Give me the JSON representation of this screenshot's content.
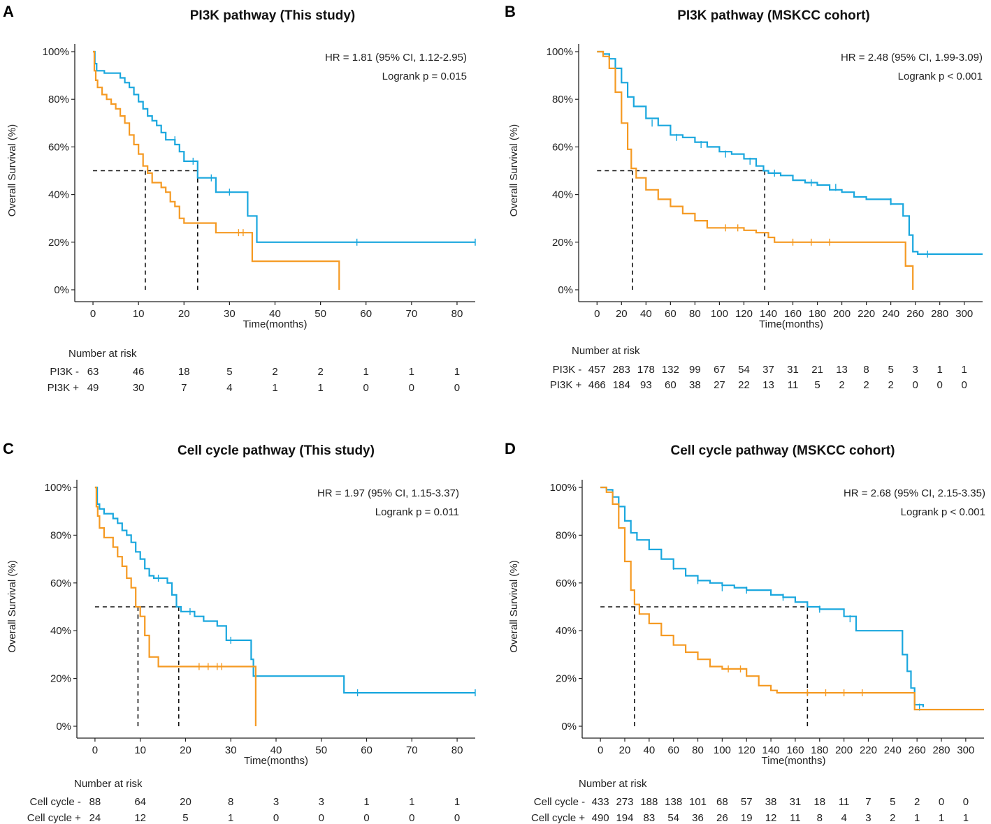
{
  "colors": {
    "minus": "#1aa7de",
    "plus": "#f59a23",
    "axis": "#222222",
    "median": "#111111"
  },
  "chart_data": [
    {
      "panel": "A",
      "type": "line",
      "title": "PI3K pathway (This study)",
      "xlabel": "Time(months)",
      "ylabel": "Overall Survival (%)",
      "xlim": [
        -4,
        84
      ],
      "ylim": [
        0,
        100
      ],
      "xticks": [
        0,
        10,
        20,
        30,
        40,
        50,
        60,
        70,
        80
      ],
      "yticks": [
        0,
        20,
        40,
        60,
        80,
        100
      ],
      "xtick_labels": [
        "0",
        "10",
        "20",
        "30",
        "40",
        "50",
        "60",
        "70",
        "80"
      ],
      "ytick_labels": [
        "0%",
        "20%",
        "40%",
        "60%",
        "80%",
        "100%"
      ],
      "hr_text": "HR = 1.81 (95% CI, 1.12-2.95)",
      "p_text": "Logrank p = 0.015",
      "medians": [
        11.5,
        23
      ],
      "series": [
        {
          "name": "PI3K -",
          "color_key": "minus",
          "x": [
            0,
            0.4,
            0.8,
            1.5,
            2.5,
            3.5,
            5,
            6,
            7,
            8,
            9,
            10,
            11,
            12,
            13,
            14,
            15,
            16,
            17,
            18,
            19,
            20,
            21,
            22,
            23,
            25,
            27,
            30,
            34,
            35,
            36,
            84
          ],
          "y": [
            100,
            95,
            92,
            92,
            91,
            91,
            91,
            89,
            87,
            85,
            82,
            79,
            76,
            73,
            71,
            69,
            66,
            63,
            63,
            61,
            58,
            54,
            54,
            54,
            47,
            47,
            41,
            41,
            31,
            31,
            20,
            20
          ],
          "censors": [
            [
              18,
              63
            ],
            [
              22,
              54
            ],
            [
              26,
              47
            ],
            [
              30,
              41
            ],
            [
              58,
              20
            ],
            [
              84,
              20
            ]
          ]
        },
        {
          "name": "PI3K +",
          "color_key": "plus",
          "x": [
            0,
            0.3,
            0.6,
            1,
            2,
            3,
            4,
            5,
            6,
            7,
            8,
            9,
            10,
            11,
            12,
            13,
            15,
            16,
            17,
            18,
            19,
            20,
            22,
            24,
            27,
            30,
            34,
            35,
            54,
            54.1
          ],
          "y": [
            100,
            92,
            88,
            85,
            82,
            80,
            78,
            76,
            73,
            70,
            65,
            61,
            57,
            52,
            49,
            45,
            43,
            41,
            37,
            35,
            30,
            28,
            28,
            28,
            24,
            24,
            24,
            12,
            12,
            0
          ],
          "censors": [
            [
              32,
              24
            ],
            [
              33,
              24
            ]
          ]
        }
      ],
      "risk": {
        "title": "Number at risk",
        "labels": [
          "PI3K -",
          "PI3K +"
        ],
        "times": [
          0,
          10,
          20,
          30,
          40,
          50,
          60,
          70,
          80
        ],
        "rows": [
          [
            "63",
            "46",
            "18",
            "5",
            "2",
            "2",
            "1",
            "1",
            "1"
          ],
          [
            "49",
            "30",
            "7",
            "4",
            "1",
            "1",
            "0",
            "0",
            "0"
          ]
        ]
      }
    },
    {
      "panel": "B",
      "type": "line",
      "title": "PI3K pathway (MSKCC cohort)",
      "xlabel": "Time(months)",
      "ylabel": "Overall Survival (%)",
      "xlim": [
        -15,
        315
      ],
      "ylim": [
        0,
        100
      ],
      "xticks": [
        0,
        20,
        40,
        60,
        80,
        100,
        120,
        140,
        160,
        180,
        200,
        220,
        240,
        260,
        280,
        300
      ],
      "yticks": [
        0,
        20,
        40,
        60,
        80,
        100
      ],
      "xtick_labels": [
        "0",
        "20",
        "40",
        "60",
        "80",
        "100",
        "120",
        "140",
        "160",
        "180",
        "200",
        "220",
        "240",
        "260",
        "280",
        "300"
      ],
      "ytick_labels": [
        "0%",
        "20%",
        "40%",
        "60%",
        "80%",
        "100%"
      ],
      "hr_text": "HR = 2.48 (95% CI, 1.99-3.09)",
      "p_text": "Logrank p < 0.001",
      "medians": [
        29,
        137
      ],
      "series": [
        {
          "name": "PI3K -",
          "color_key": "minus",
          "x": [
            0,
            5,
            10,
            15,
            20,
            25,
            30,
            40,
            50,
            60,
            70,
            80,
            90,
            100,
            110,
            120,
            130,
            136,
            140,
            150,
            160,
            170,
            180,
            190,
            200,
            210,
            220,
            230,
            240,
            250,
            255,
            258,
            262,
            315
          ],
          "y": [
            100,
            99,
            97,
            93,
            87,
            81,
            77,
            72,
            69,
            65,
            64,
            62,
            60,
            58,
            57,
            55,
            52,
            50,
            49,
            48,
            46,
            45,
            44,
            42,
            41,
            39,
            38,
            38,
            36,
            31,
            23,
            16,
            15,
            15
          ],
          "censors": [
            [
              45,
              70
            ],
            [
              65,
              64
            ],
            [
              85,
              61
            ],
            [
              105,
              57
            ],
            [
              125,
              54
            ],
            [
              145,
              49
            ],
            [
              175,
              45
            ],
            [
              195,
              43
            ],
            [
              240,
              37
            ],
            [
              270,
              15
            ]
          ]
        },
        {
          "name": "PI3K +",
          "color_key": "plus",
          "x": [
            0,
            5,
            10,
            15,
            20,
            25,
            28,
            32,
            40,
            50,
            60,
            70,
            80,
            90,
            100,
            110,
            120,
            130,
            140,
            145,
            150,
            200,
            250,
            252,
            255,
            258
          ],
          "y": [
            100,
            98,
            93,
            83,
            70,
            59,
            51,
            47,
            42,
            38,
            35,
            32,
            29,
            26,
            26,
            26,
            25,
            24,
            22,
            20,
            20,
            20,
            20,
            10,
            10,
            0
          ],
          "censors": [
            [
              105,
              26
            ],
            [
              115,
              26
            ],
            [
              160,
              20
            ],
            [
              175,
              20
            ],
            [
              190,
              20
            ]
          ]
        }
      ],
      "risk": {
        "title": "Number at risk",
        "labels": [
          "PI3K -",
          "PI3K +"
        ],
        "times": [
          0,
          20,
          40,
          60,
          80,
          100,
          120,
          140,
          160,
          180,
          200,
          220,
          240,
          260,
          280,
          300
        ],
        "rows": [
          [
            "457",
            "283",
            "178",
            "132",
            "99",
            "67",
            "54",
            "37",
            "31",
            "21",
            "13",
            "8",
            "5",
            "3",
            "1",
            "1"
          ],
          [
            "466",
            "184",
            "93",
            "60",
            "38",
            "27",
            "22",
            "13",
            "11",
            "5",
            "2",
            "2",
            "2",
            "0",
            "0",
            "0"
          ]
        ]
      }
    },
    {
      "panel": "C",
      "type": "line",
      "title": "Cell cycle pathway (This study)",
      "xlabel": "Time(months)",
      "ylabel": "Overall Survival (%)",
      "xlim": [
        -4,
        84
      ],
      "ylim": [
        0,
        100
      ],
      "xticks": [
        0,
        10,
        20,
        30,
        40,
        50,
        60,
        70,
        80
      ],
      "yticks": [
        0,
        20,
        40,
        60,
        80,
        100
      ],
      "xtick_labels": [
        "0",
        "10",
        "20",
        "30",
        "40",
        "50",
        "60",
        "70",
        "80"
      ],
      "ytick_labels": [
        "0%",
        "20%",
        "40%",
        "60%",
        "80%",
        "100%"
      ],
      "hr_text": "HR = 1.97 (95% CI, 1.15-3.37)",
      "p_text": "Logrank p = 0.011",
      "medians": [
        9.5,
        18.5
      ],
      "series": [
        {
          "name": "Cell cycle -",
          "color_key": "minus",
          "x": [
            0,
            0.5,
            1,
            2,
            4,
            5,
            6,
            7,
            8,
            9,
            10,
            11,
            12,
            13,
            15,
            16,
            17,
            18,
            19,
            20,
            22,
            24,
            27,
            29,
            34,
            34.5,
            35,
            54,
            55,
            84
          ],
          "y": [
            100,
            93,
            91,
            89,
            87,
            85,
            82,
            80,
            77,
            73,
            70,
            66,
            63,
            62,
            62,
            60,
            55,
            50,
            48,
            48,
            46,
            44,
            42,
            36,
            36,
            28,
            21,
            21,
            14,
            14
          ],
          "censors": [
            [
              14,
              62
            ],
            [
              21,
              48
            ],
            [
              30,
              36
            ],
            [
              58,
              14
            ],
            [
              84,
              14
            ]
          ]
        },
        {
          "name": "Cell cycle +",
          "color_key": "plus",
          "x": [
            0,
            0.3,
            0.6,
            1,
            2,
            4,
            5,
            6,
            7,
            8,
            9,
            10,
            11,
            12,
            14,
            35,
            35.5
          ],
          "y": [
            100,
            92,
            88,
            83,
            79,
            75,
            71,
            67,
            62,
            58,
            50,
            46,
            38,
            29,
            25,
            25,
            0
          ],
          "censors": [
            [
              23,
              25
            ],
            [
              25,
              25
            ],
            [
              27,
              25
            ],
            [
              28,
              25
            ]
          ]
        }
      ],
      "risk": {
        "title": "Number at risk",
        "labels": [
          "Cell cycle -",
          "Cell cycle +"
        ],
        "times": [
          0,
          10,
          20,
          30,
          40,
          50,
          60,
          70,
          80
        ],
        "rows": [
          [
            "88",
            "64",
            "20",
            "8",
            "3",
            "3",
            "1",
            "1",
            "1"
          ],
          [
            "24",
            "12",
            "5",
            "1",
            "0",
            "0",
            "0",
            "0",
            "0"
          ]
        ]
      }
    },
    {
      "panel": "D",
      "type": "line",
      "title": "Cell cycle pathway (MSKCC cohort)",
      "xlabel": "Time(months)",
      "ylabel": "Overall Survival (%)",
      "xlim": [
        -15,
        315
      ],
      "ylim": [
        0,
        100
      ],
      "xticks": [
        0,
        20,
        40,
        60,
        80,
        100,
        120,
        140,
        160,
        180,
        200,
        220,
        240,
        260,
        280,
        300
      ],
      "yticks": [
        0,
        20,
        40,
        60,
        80,
        100
      ],
      "xtick_labels": [
        "0",
        "20",
        "40",
        "60",
        "80",
        "100",
        "120",
        "140",
        "160",
        "180",
        "200",
        "220",
        "240",
        "260",
        "280",
        "300"
      ],
      "ytick_labels": [
        "0%",
        "20%",
        "40%",
        "60%",
        "80%",
        "100%"
      ],
      "hr_text": "HR = 2.68 (95% CI, 2.15-3.35)",
      "p_text": "Logrank p < 0.001",
      "medians": [
        28,
        170
      ],
      "series": [
        {
          "name": "Cell cycle -",
          "color_key": "minus",
          "x": [
            0,
            5,
            10,
            15,
            20,
            25,
            30,
            40,
            50,
            60,
            70,
            80,
            90,
            100,
            110,
            120,
            140,
            150,
            160,
            170,
            180,
            200,
            210,
            240,
            248,
            252,
            255,
            258,
            265
          ],
          "y": [
            100,
            99,
            96,
            92,
            86,
            81,
            78,
            74,
            70,
            66,
            63,
            61,
            60,
            59,
            58,
            57,
            55,
            54,
            52,
            50,
            49,
            46,
            40,
            40,
            30,
            23,
            16,
            9,
            8
          ],
          "censors": [
            [
              40,
              76
            ],
            [
              60,
              67
            ],
            [
              80,
              61
            ],
            [
              100,
              58
            ],
            [
              120,
              57
            ],
            [
              150,
              54
            ],
            [
              180,
              49
            ],
            [
              205,
              45
            ],
            [
              262,
              8
            ]
          ]
        },
        {
          "name": "Cell cycle +",
          "color_key": "plus",
          "x": [
            0,
            5,
            10,
            15,
            20,
            25,
            28,
            32,
            40,
            50,
            60,
            70,
            80,
            90,
            100,
            110,
            120,
            130,
            140,
            145,
            150,
            200,
            255,
            258,
            315
          ],
          "y": [
            100,
            98,
            93,
            83,
            69,
            57,
            51,
            47,
            43,
            38,
            34,
            31,
            28,
            25,
            24,
            24,
            21,
            17,
            15,
            14,
            14,
            14,
            14,
            7,
            7
          ],
          "censors": [
            [
              105,
              24
            ],
            [
              115,
              24
            ],
            [
              170,
              14
            ],
            [
              185,
              14
            ],
            [
              200,
              14
            ],
            [
              215,
              14
            ]
          ]
        }
      ],
      "risk": {
        "title": "Number at risk",
        "labels": [
          "Cell cycle -",
          "Cell cycle +"
        ],
        "times": [
          0,
          20,
          40,
          60,
          80,
          100,
          120,
          140,
          160,
          180,
          200,
          220,
          240,
          260,
          280,
          300
        ],
        "rows": [
          [
            "433",
            "273",
            "188",
            "138",
            "101",
            "68",
            "57",
            "38",
            "31",
            "18",
            "11",
            "7",
            "5",
            "2",
            "0",
            "0"
          ],
          [
            "490",
            "194",
            "83",
            "54",
            "36",
            "26",
            "19",
            "12",
            "11",
            "8",
            "4",
            "3",
            "2",
            "1",
            "1",
            "1"
          ]
        ]
      }
    }
  ]
}
